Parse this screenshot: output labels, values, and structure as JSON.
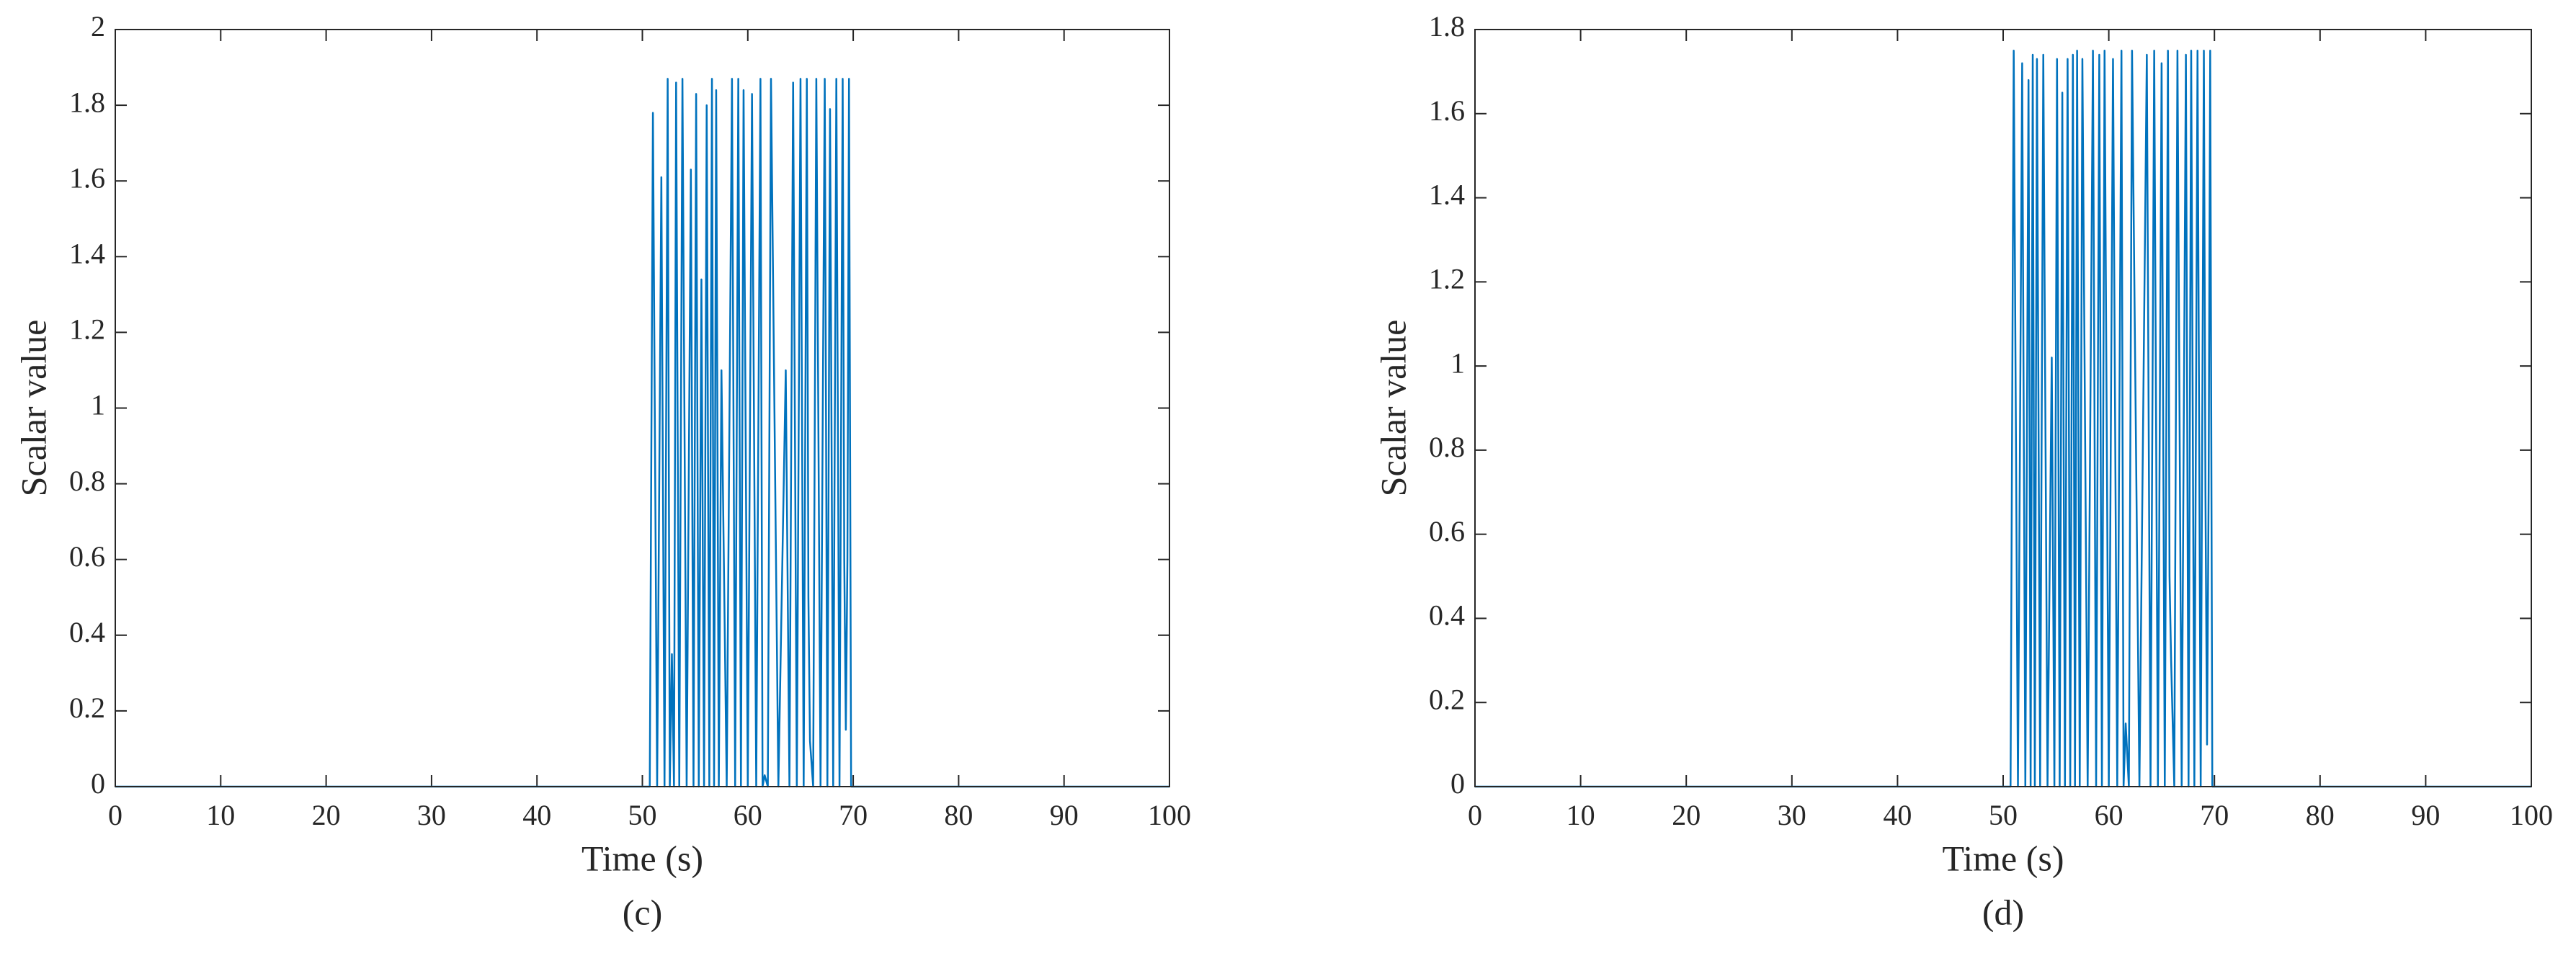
{
  "chart_data": [
    {
      "type": "line",
      "caption": "(c)",
      "xlabel": "Time (s)",
      "ylabel": "Scalar value",
      "color": "#0072bd",
      "xlim": [
        0,
        100
      ],
      "xticks": [
        0,
        10,
        20,
        30,
        40,
        50,
        60,
        70,
        80,
        90,
        100
      ],
      "ylim": [
        0,
        2
      ],
      "yticks": [
        0,
        0.2,
        0.4,
        0.6,
        0.8,
        1,
        1.2,
        1.4,
        1.6,
        1.8,
        2
      ],
      "x": [
        0,
        50.7,
        51.0,
        51.4,
        51.8,
        52.1,
        52.4,
        52.6,
        52.8,
        53.0,
        53.2,
        53.5,
        53.8,
        54.2,
        54.6,
        54.85,
        55.1,
        55.35,
        55.6,
        55.85,
        56.1,
        56.35,
        56.6,
        56.8,
        57.0,
        57.25,
        57.5,
        58.0,
        58.5,
        58.8,
        59.1,
        59.35,
        59.6,
        60.0,
        60.4,
        60.8,
        61.2,
        61.4,
        61.6,
        61.9,
        62.2,
        62.9,
        63.6,
        63.95,
        64.3,
        64.65,
        65.0,
        65.3,
        65.6,
        65.75,
        65.9,
        66.2,
        66.5,
        66.9,
        67.3,
        67.55,
        67.8,
        68.1,
        68.4,
        68.7,
        69.0,
        69.15,
        69.3,
        69.45,
        69.6,
        69.8,
        70.0,
        100
      ],
      "values": [
        0,
        0,
        1.78,
        0,
        1.61,
        0,
        1.87,
        0,
        0.35,
        0,
        1.86,
        0,
        1.87,
        0,
        1.63,
        0,
        1.83,
        0,
        1.34,
        0,
        1.8,
        0,
        1.87,
        0,
        1.84,
        0,
        1.1,
        0,
        1.87,
        0,
        1.87,
        0,
        1.84,
        0,
        1.83,
        0,
        1.87,
        0,
        0.03,
        0,
        1.87,
        0,
        1.1,
        0,
        1.86,
        0,
        1.87,
        0,
        1.87,
        0.5,
        0.12,
        0,
        1.87,
        0,
        1.87,
        0,
        1.79,
        0,
        1.87,
        0,
        1.87,
        0.6,
        0.15,
        0.6,
        1.87,
        0,
        0,
        0
      ]
    },
    {
      "type": "line",
      "caption": "(d)",
      "xlabel": "Time (s)",
      "ylabel": "Scalar value",
      "color": "#0072bd",
      "xlim": [
        0,
        100
      ],
      "xticks": [
        0,
        10,
        20,
        30,
        40,
        50,
        60,
        70,
        80,
        90,
        100
      ],
      "ylim": [
        0,
        1.8
      ],
      "yticks": [
        0,
        0.2,
        0.4,
        0.6,
        0.8,
        1,
        1.2,
        1.4,
        1.6,
        1.8
      ],
      "x": [
        0,
        50.7,
        51.0,
        51.4,
        51.8,
        52.1,
        52.4,
        52.6,
        52.8,
        53.0,
        53.2,
        53.5,
        53.8,
        54.2,
        54.6,
        54.85,
        55.1,
        55.35,
        55.6,
        55.85,
        56.1,
        56.35,
        56.6,
        56.8,
        57.0,
        57.25,
        57.5,
        58.0,
        58.5,
        58.8,
        59.1,
        59.35,
        59.6,
        60.0,
        60.4,
        60.8,
        61.2,
        61.4,
        61.6,
        61.9,
        62.2,
        62.9,
        63.6,
        63.95,
        64.3,
        64.65,
        65.0,
        65.3,
        65.6,
        65.75,
        65.9,
        66.2,
        66.5,
        66.9,
        67.3,
        67.55,
        67.8,
        68.1,
        68.4,
        68.7,
        69.0,
        69.15,
        69.3,
        69.45,
        69.6,
        69.8,
        70.0,
        100
      ],
      "values": [
        0,
        0,
        1.75,
        0,
        1.72,
        0,
        1.68,
        0,
        1.74,
        0,
        1.73,
        0,
        1.74,
        0,
        1.02,
        0,
        1.73,
        0,
        1.65,
        0,
        1.73,
        0,
        1.74,
        0,
        1.75,
        0,
        1.73,
        0,
        1.75,
        0,
        1.74,
        0,
        1.75,
        0,
        1.73,
        0,
        1.75,
        0,
        0.15,
        0,
        1.75,
        0,
        1.74,
        0,
        1.75,
        0,
        1.72,
        0,
        1.75,
        0.5,
        0.3,
        0,
        1.75,
        0,
        1.74,
        0,
        1.75,
        0,
        1.75,
        0,
        1.75,
        0.7,
        0.1,
        0.7,
        1.75,
        0,
        0,
        0
      ]
    }
  ]
}
